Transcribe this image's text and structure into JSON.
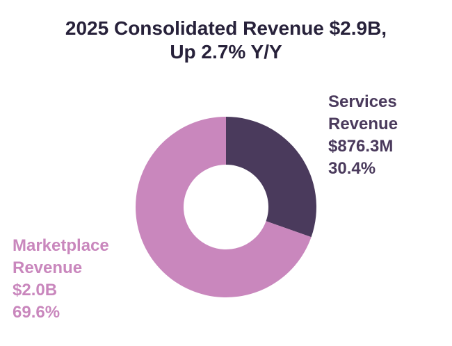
{
  "chart_data": {
    "type": "pie",
    "donut": true,
    "title": [
      "2025 Consolidated Revenue $2.9B,",
      "Up 2.7% Y/Y"
    ],
    "categories": [
      "Services Revenue",
      "Marketplace Revenue"
    ],
    "values": [
      30.4,
      69.6
    ],
    "unit": "%",
    "colors": [
      "#4a3a5c",
      "#c987bd"
    ],
    "labels": {
      "services": {
        "lines": [
          "Services",
          "Revenue",
          "$876.3M",
          "30.4%"
        ],
        "color": "#4a3a5c"
      },
      "marketplace": {
        "lines": [
          "Marketplace",
          "Revenue",
          "$2.0B",
          "69.6%"
        ],
        "color": "#c987bd"
      }
    }
  }
}
